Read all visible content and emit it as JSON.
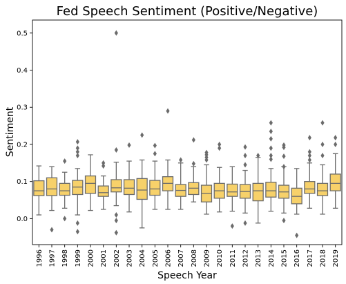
{
  "chart_data": {
    "type": "box",
    "title": "Fed Speech Sentiment (Positive/Negative)",
    "xlabel": "Speech Year",
    "ylabel": "Sentiment",
    "ylim": [
      -0.07,
      0.535
    ],
    "yticks": [
      "0.0",
      "0.1",
      "0.2",
      "0.3",
      "0.4",
      "0.5"
    ],
    "ytick_values": [
      0.0,
      0.1,
      0.2,
      0.3,
      0.4,
      0.5
    ],
    "grid": false,
    "legend": "none",
    "colors": {
      "box_fill": "#f7d16a",
      "line": "#6b6b6b",
      "axis": "#000000"
    },
    "categories": [
      "1996",
      "1997",
      "1998",
      "1999",
      "2000",
      "2001",
      "2002",
      "2003",
      "2004",
      "2005",
      "2006",
      "2007",
      "2008",
      "2009",
      "2010",
      "2011",
      "2012",
      "2013",
      "2014",
      "2015",
      "2016",
      "2017",
      "2018",
      "2019"
    ],
    "boxes": [
      {
        "year": "1996",
        "whisker_low": 0.01,
        "q1": 0.062,
        "median": 0.075,
        "q3": 0.102,
        "whisker_high": 0.142,
        "outliers": []
      },
      {
        "year": "1997",
        "whisker_low": 0.022,
        "q1": 0.062,
        "median": 0.08,
        "q3": 0.11,
        "whisker_high": 0.14,
        "outliers": [
          -0.03
        ]
      },
      {
        "year": "1998",
        "whisker_low": 0.028,
        "q1": 0.063,
        "median": 0.075,
        "q3": 0.095,
        "whisker_high": 0.125,
        "outliers": [
          0.155,
          0.0
        ]
      },
      {
        "year": "1999",
        "whisker_low": 0.01,
        "q1": 0.065,
        "median": 0.085,
        "q3": 0.103,
        "whisker_high": 0.135,
        "outliers": [
          0.207,
          0.19,
          0.18,
          0.17,
          -0.012,
          -0.035
        ]
      },
      {
        "year": "2000",
        "whisker_low": 0.022,
        "q1": 0.068,
        "median": 0.095,
        "q3": 0.115,
        "whisker_high": 0.172,
        "outliers": []
      },
      {
        "year": "2001",
        "whisker_low": 0.025,
        "q1": 0.06,
        "median": 0.07,
        "q3": 0.088,
        "whisker_high": 0.115,
        "outliers": [
          0.15,
          0.142
        ]
      },
      {
        "year": "2002",
        "whisker_low": 0.035,
        "q1": 0.072,
        "median": 0.083,
        "q3": 0.105,
        "whisker_high": 0.152,
        "outliers": [
          0.5,
          0.185,
          0.01,
          -0.005,
          -0.038
        ]
      },
      {
        "year": "2003",
        "whisker_low": 0.018,
        "q1": 0.065,
        "median": 0.082,
        "q3": 0.105,
        "whisker_high": 0.155,
        "outliers": [
          0.198
        ]
      },
      {
        "year": "2004",
        "whisker_low": -0.025,
        "q1": 0.052,
        "median": 0.077,
        "q3": 0.108,
        "whisker_high": 0.158,
        "outliers": [
          0.225
        ]
      },
      {
        "year": "2005",
        "whisker_low": 0.025,
        "q1": 0.063,
        "median": 0.08,
        "q3": 0.103,
        "whisker_high": 0.155,
        "outliers": [
          0.197,
          0.175
        ]
      },
      {
        "year": "2006",
        "whisker_low": 0.025,
        "q1": 0.075,
        "median": 0.095,
        "q3": 0.113,
        "whisker_high": 0.158,
        "outliers": [
          0.29
        ]
      },
      {
        "year": "2007",
        "whisker_low": 0.025,
        "q1": 0.06,
        "median": 0.076,
        "q3": 0.092,
        "whisker_high": 0.15,
        "outliers": [
          0.158
        ]
      },
      {
        "year": "2008",
        "whisker_low": 0.045,
        "q1": 0.065,
        "median": 0.082,
        "q3": 0.097,
        "whisker_high": 0.14,
        "outliers": [
          0.212,
          0.148
        ]
      },
      {
        "year": "2009",
        "whisker_low": 0.012,
        "q1": 0.045,
        "median": 0.068,
        "q3": 0.09,
        "whisker_high": 0.145,
        "outliers": [
          0.178,
          0.172,
          0.165,
          0.158
        ]
      },
      {
        "year": "2010",
        "whisker_low": 0.018,
        "q1": 0.055,
        "median": 0.075,
        "q3": 0.095,
        "whisker_high": 0.138,
        "outliers": [
          0.2,
          0.19
        ]
      },
      {
        "year": "2011",
        "whisker_low": 0.02,
        "q1": 0.06,
        "median": 0.072,
        "q3": 0.093,
        "whisker_high": 0.14,
        "outliers": [
          -0.02
        ]
      },
      {
        "year": "2012",
        "whisker_low": 0.015,
        "q1": 0.055,
        "median": 0.073,
        "q3": 0.092,
        "whisker_high": 0.13,
        "outliers": [
          0.193,
          0.17,
          0.145,
          -0.012
        ]
      },
      {
        "year": "2013",
        "whisker_low": -0.012,
        "q1": 0.048,
        "median": 0.075,
        "q3": 0.095,
        "whisker_high": 0.165,
        "outliers": [
          0.17
        ]
      },
      {
        "year": "2014",
        "whisker_low": 0.02,
        "q1": 0.058,
        "median": 0.075,
        "q3": 0.098,
        "whisker_high": 0.135,
        "outliers": [
          0.258,
          0.235,
          0.215,
          0.19,
          0.17,
          0.16
        ]
      },
      {
        "year": "2015",
        "whisker_low": 0.015,
        "q1": 0.055,
        "median": 0.072,
        "q3": 0.09,
        "whisker_high": 0.14,
        "outliers": [
          0.198,
          0.192,
          0.168,
          0.14,
          -0.005
        ]
      },
      {
        "year": "2016",
        "whisker_low": 0.012,
        "q1": 0.04,
        "median": 0.06,
        "q3": 0.082,
        "whisker_high": 0.135,
        "outliers": [
          -0.045
        ]
      },
      {
        "year": "2017",
        "whisker_low": 0.028,
        "q1": 0.068,
        "median": 0.08,
        "q3": 0.1,
        "whisker_high": 0.15,
        "outliers": [
          0.218,
          0.18,
          0.17,
          0.158
        ]
      },
      {
        "year": "2018",
        "whisker_low": 0.012,
        "q1": 0.062,
        "median": 0.075,
        "q3": 0.095,
        "whisker_high": 0.145,
        "outliers": [
          0.258,
          0.2,
          0.17
        ]
      },
      {
        "year": "2019",
        "whisker_low": 0.028,
        "q1": 0.075,
        "median": 0.095,
        "q3": 0.12,
        "whisker_high": 0.175,
        "outliers": [
          0.218,
          0.2
        ]
      }
    ]
  }
}
